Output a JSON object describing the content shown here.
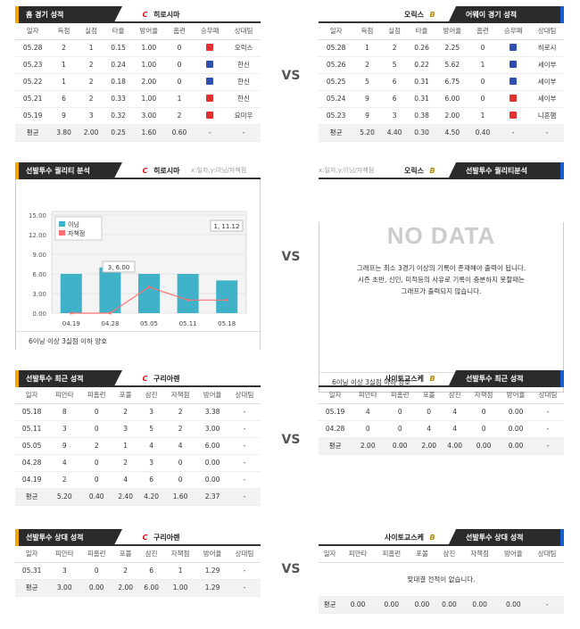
{
  "vs_label": "VS",
  "colors": {
    "win": "#e03030",
    "loss": "#2d4fb0",
    "bar": "#3fb2c9",
    "line": "#ff7070"
  },
  "s1": {
    "left": {
      "tab": "홈 경기 성적",
      "team": "히로시마",
      "cols": [
        "일자",
        "득점",
        "실점",
        "타율",
        "방어율",
        "홈런",
        "승무패",
        "상대팀"
      ],
      "rows": [
        {
          "c": [
            "05.28",
            "2",
            "1",
            "0.15",
            "1.00",
            "0"
          ],
          "res": "win",
          "opp": "오릭스"
        },
        {
          "c": [
            "05.23",
            "1",
            "2",
            "0.24",
            "1.00",
            "0"
          ],
          "res": "loss",
          "opp": "한신"
        },
        {
          "c": [
            "05.22",
            "1",
            "2",
            "0.18",
            "2.00",
            "0"
          ],
          "res": "loss",
          "opp": "한신"
        },
        {
          "c": [
            "05.21",
            "6",
            "2",
            "0.33",
            "1.00",
            "1"
          ],
          "res": "win",
          "opp": "한신"
        },
        {
          "c": [
            "05.19",
            "9",
            "3",
            "0.32",
            "3.00",
            "2"
          ],
          "res": "win",
          "opp": "요미우"
        }
      ],
      "avg": [
        "평균",
        "3.80",
        "2.00",
        "0.25",
        "1.60",
        "0.60",
        "-",
        "-"
      ]
    },
    "right": {
      "tab": "어웨이 경기 성적",
      "team": "오릭스",
      "cols": [
        "일자",
        "득점",
        "실점",
        "타율",
        "방어율",
        "홈런",
        "승무패",
        "상대팀"
      ],
      "rows": [
        {
          "c": [
            "05.28",
            "1",
            "2",
            "0.26",
            "2.25",
            "0"
          ],
          "res": "loss",
          "opp": "히로시"
        },
        {
          "c": [
            "05.26",
            "2",
            "5",
            "0.22",
            "5.62",
            "1"
          ],
          "res": "loss",
          "opp": "세이부"
        },
        {
          "c": [
            "05.25",
            "5",
            "6",
            "0.31",
            "6.75",
            "0"
          ],
          "res": "loss",
          "opp": "세이부"
        },
        {
          "c": [
            "05.24",
            "9",
            "6",
            "0.31",
            "6.00",
            "0"
          ],
          "res": "win",
          "opp": "세이부"
        },
        {
          "c": [
            "05.23",
            "9",
            "3",
            "0.38",
            "2.00",
            "1"
          ],
          "res": "win",
          "opp": "니혼햄"
        }
      ],
      "avg": [
        "평균",
        "5.20",
        "4.40",
        "0.30",
        "4.50",
        "0.40",
        "-",
        "-"
      ]
    }
  },
  "s2": {
    "left": {
      "tab": "선발투수 퀄리티 분석",
      "team": "히로시마",
      "axis": "x:일자,y:이닝/자책점",
      "note": "6이닝 이상 3실점 이하 양호"
    },
    "right": {
      "tab": "선발투수 퀄리티분석",
      "team": "오릭스",
      "axis": "x:일자,y:이닝/자책점",
      "nodata": "NO DATA",
      "msg1": "그래프는 최소 3경기 이상의 기록이 존재해야 출력이 됩니다.",
      "msg2": "시즌 초반, 신인, 미적등의 사유로 기록이 충분하지 못할때는",
      "msg3": "그래프가 출력되지 않습니다.",
      "note": "6이닝 이상 3실점 이하 양호"
    }
  },
  "chart_data": {
    "type": "bar",
    "categories": [
      "04.19",
      "04.28",
      "05.05",
      "05.11",
      "05.18"
    ],
    "series": [
      {
        "name": "이닝",
        "values": [
          6,
          7,
          6,
          6,
          5
        ]
      },
      {
        "name": "자책점",
        "values": [
          0,
          0,
          4,
          2,
          2
        ]
      }
    ],
    "ylim": [
      0,
      15
    ],
    "yticks": [
      "0.00",
      "3.00",
      "6.00",
      "9.00",
      "12.00",
      "15.00"
    ],
    "annotations": [
      "3, 6.00",
      "1, 11.12"
    ],
    "legend": "top-left"
  },
  "s3": {
    "left": {
      "tab": "선발투수 최근 성적",
      "team": "구리아렌",
      "cols": [
        "일자",
        "피안타",
        "피홈런",
        "포볼",
        "삼진",
        "자책점",
        "방어율",
        "상대팀"
      ],
      "rows": [
        [
          "05.18",
          "8",
          "0",
          "2",
          "3",
          "2",
          "3.38",
          "-"
        ],
        [
          "05.11",
          "3",
          "0",
          "3",
          "5",
          "2",
          "3.00",
          "-"
        ],
        [
          "05.05",
          "9",
          "2",
          "1",
          "4",
          "4",
          "6.00",
          "-"
        ],
        [
          "04.28",
          "4",
          "0",
          "2",
          "3",
          "0",
          "0.00",
          "-"
        ],
        [
          "04.19",
          "2",
          "0",
          "4",
          "6",
          "0",
          "0.00",
          "-"
        ]
      ],
      "avg": [
        "평균",
        "5.20",
        "0.40",
        "2.40",
        "4.20",
        "1.60",
        "2.37",
        "-"
      ]
    },
    "right": {
      "tab": "선발투수 최근 성적",
      "team": "사이토교스케",
      "cols": [
        "일자",
        "피안타",
        "피홈런",
        "포볼",
        "삼진",
        "자책점",
        "방어율",
        "상대팀"
      ],
      "rows": [
        [
          "05.19",
          "4",
          "0",
          "0",
          "4",
          "0",
          "0.00",
          "-"
        ],
        [
          "04.28",
          "0",
          "0",
          "4",
          "4",
          "0",
          "0.00",
          "-"
        ]
      ],
      "avg": [
        "평균",
        "2.00",
        "0.00",
        "2.00",
        "4.00",
        "0.00",
        "0.00",
        "-"
      ]
    }
  },
  "s4": {
    "left": {
      "tab": "선발투수 상대 성적",
      "team": "구리아렌",
      "cols": [
        "일자",
        "피안타",
        "피홈런",
        "포볼",
        "삼진",
        "자책점",
        "방어율",
        "상대팀"
      ],
      "rows": [
        [
          "05.31",
          "3",
          "0",
          "2",
          "6",
          "1",
          "1.29",
          "-"
        ]
      ],
      "avg": [
        "평균",
        "3.00",
        "0.00",
        "2.00",
        "6.00",
        "1.00",
        "1.29",
        "-"
      ]
    },
    "right": {
      "tab": "선발투수 상대 성적",
      "team": "사이토교스케",
      "cols": [
        "일자",
        "피안타",
        "피홈런",
        "포볼",
        "삼진",
        "자책점",
        "방어율",
        "상대팀"
      ],
      "empty": "맞대결 전적이 없습니다.",
      "avg": [
        "평균",
        "0.00",
        "0.00",
        "0.00",
        "0.00",
        "0.00",
        "0.00",
        "-"
      ]
    }
  }
}
